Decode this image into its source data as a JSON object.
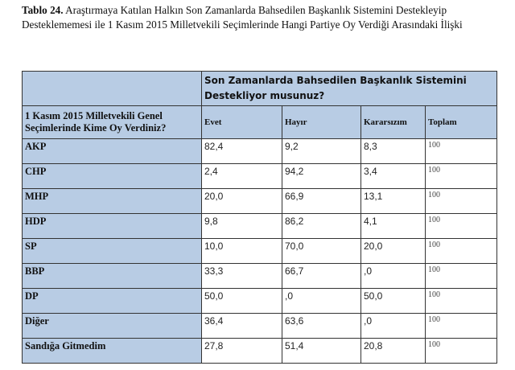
{
  "caption": {
    "label": "Tablo 24.",
    "text": " Araştırmaya Katılan Halkın Son Zamanlarda Bahsedilen Başkanlık Sistemini Destekleyip Desteklememesi ile 1 Kasım 2015 Milletvekili Seçimlerinde Hangi Partiye Oy Verdiği Arasındaki İlişki"
  },
  "table": {
    "group_header": "Son Zamanlarda Bahsedilen Başkanlık Sistemini Destekliyor musunuz?",
    "row_header": "1 Kasım 2015 Milletvekili Genel Seçimlerinde Kime Oy Verdiniz?",
    "columns": [
      "Evet",
      "Hayır",
      "Kararsızım",
      "Toplam"
    ],
    "rows": [
      {
        "label": "AKP",
        "values": [
          "82,4",
          "9,2",
          "8,3",
          "100"
        ]
      },
      {
        "label": "CHP",
        "values": [
          "2,4",
          "94,2",
          "3,4",
          "100"
        ]
      },
      {
        "label": "MHP",
        "values": [
          "20,0",
          "66,9",
          "13,1",
          "100"
        ]
      },
      {
        "label": "HDP",
        "values": [
          "9,8",
          "86,2",
          "4,1",
          "100"
        ]
      },
      {
        "label": "SP",
        "values": [
          "10,0",
          "70,0",
          "20,0",
          "100"
        ]
      },
      {
        "label": "BBP",
        "values": [
          "33,3",
          "66,7",
          ",0",
          "100"
        ]
      },
      {
        "label": "DP",
        "values": [
          "50,0",
          ",0",
          "50,0",
          "100"
        ]
      },
      {
        "label": "Diğer",
        "values": [
          "36,4",
          "63,6",
          ",0",
          "100"
        ]
      },
      {
        "label": "Sandığa Gitmedim",
        "values": [
          "27,8",
          "51,4",
          "20,8",
          "100"
        ]
      }
    ],
    "header_color": "#b8cce4"
  }
}
